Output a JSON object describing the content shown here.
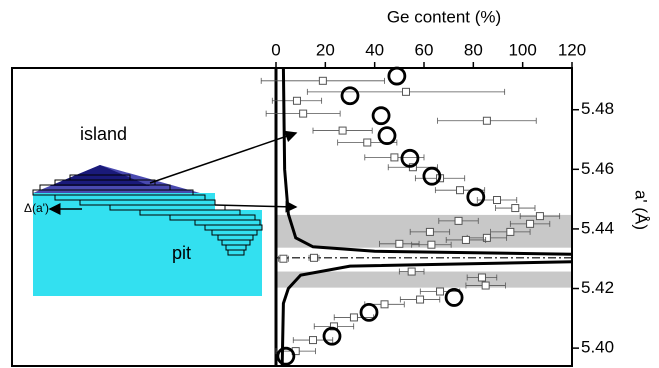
{
  "chart_data": {
    "type": "scatter",
    "x_label": "Ge content (%)",
    "y_label": "a' (Å)",
    "xlim": [
      0,
      120
    ],
    "xticks": [
      0,
      20,
      40,
      60,
      80,
      100,
      120
    ],
    "ylim": [
      5.394,
      5.494
    ],
    "yticks": [
      {
        "value": 5.4,
        "label": "5.40"
      },
      5.42,
      5.44,
      5.46,
      5.48
    ],
    "annotations": [
      "island",
      "pit",
      "Δ(a')"
    ],
    "bands": [
      [
        5.4337,
        5.4447
      ],
      [
        5.4203,
        5.4257
      ]
    ],
    "reference_y": 5.4303,
    "series": [
      {
        "style": "square",
        "color": "#555555",
        "x": [
          19,
          52.7,
          8.5,
          11,
          85.5,
          27,
          37,
          48,
          55.5,
          66.5,
          74.6,
          89.6,
          97,
          107,
          103,
          95,
          85.5,
          77,
          63,
          50,
          62.4,
          74,
          3,
          15.4,
          55,
          83.5,
          85,
          66.5,
          58.4,
          44,
          31.6,
          23.5,
          15,
          8
        ],
        "values": [
          5.4897,
          5.486,
          5.483,
          5.4787,
          5.4763,
          5.473,
          5.469,
          5.464,
          5.4607,
          5.457,
          5.453,
          5.4497,
          5.447,
          5.4443,
          5.4417,
          5.439,
          5.437,
          5.4363,
          5.4347,
          5.435,
          5.439,
          5.4427,
          5.43,
          5.4303,
          5.4257,
          5.4237,
          5.421,
          5.419,
          5.4163,
          5.4147,
          5.4103,
          5.4073,
          5.4027,
          5.399
        ],
        "xerr": [
          25,
          40,
          10,
          15,
          20,
          12,
          12,
          12,
          10,
          10,
          10,
          8,
          8,
          8,
          8,
          8,
          8,
          8,
          8,
          8,
          8,
          8,
          2,
          2,
          5,
          6,
          8,
          8,
          8,
          8,
          8,
          8,
          8,
          8
        ]
      },
      {
        "style": "circle",
        "color": "#000000",
        "x": [
          49,
          30,
          42.6,
          45,
          54.3,
          63.2,
          81,
          72.2,
          37.7,
          22.7,
          4
        ],
        "values": [
          5.4913,
          5.4847,
          5.478,
          5.4713,
          5.4637,
          5.4577,
          5.4507,
          5.417,
          5.412,
          5.404,
          5.3973
        ]
      },
      {
        "style": "line",
        "color": "#000000",
        "x": [
          3,
          3.5,
          5,
          8,
          15,
          40,
          120
        ],
        "values": [
          5.494,
          5.46,
          5.445,
          5.437,
          5.434,
          5.4325,
          5.4315
        ]
      },
      {
        "style": "line",
        "color": "#000000",
        "x": [
          2.5,
          3,
          5,
          10,
          30,
          120
        ],
        "values": [
          5.394,
          5.415,
          5.42,
          5.4245,
          5.4275,
          5.429
        ]
      }
    ]
  }
}
